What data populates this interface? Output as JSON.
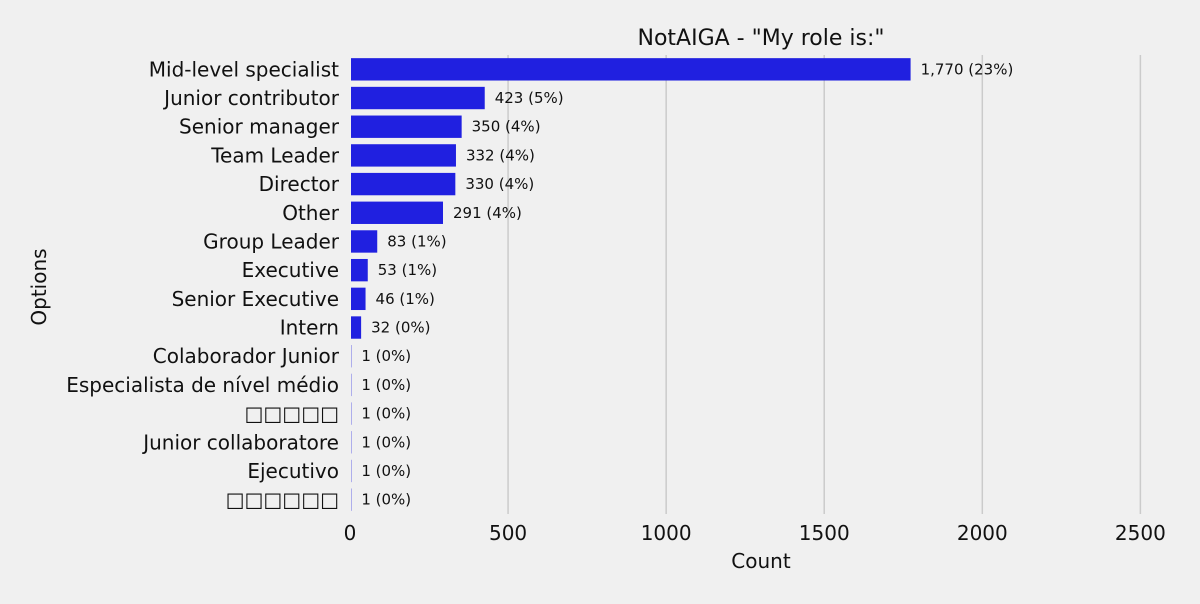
{
  "chart_data": {
    "type": "bar",
    "orientation": "horizontal",
    "title": "NotAIGA - \"My role is:\"",
    "xlabel": "Count",
    "ylabel": "Options",
    "xlim": [
      0,
      2600
    ],
    "xticks": [
      0,
      500,
      1000,
      1500,
      2000,
      2500
    ],
    "grid": "vertical",
    "bar_color": "#2020e0",
    "background": "#f0f0f0",
    "categories": [
      "Mid-level specialist",
      "Junior contributor",
      "Senior manager",
      "Team Leader",
      "Director",
      "Other",
      "Group Leader",
      "Executive",
      "Senior Executive",
      "Intern",
      "Colaborador Junior",
      "Especialista de nível médio",
      "□□□□□",
      "Junior collaboratore",
      "Ejecutivo",
      "□□□□□□"
    ],
    "values": [
      1770,
      423,
      350,
      332,
      330,
      291,
      83,
      53,
      46,
      32,
      1,
      1,
      1,
      1,
      1,
      1
    ],
    "data_labels": [
      "1,770 (23%)",
      "423 (5%)",
      "350 (4%)",
      "332 (4%)",
      "330 (4%)",
      "291 (4%)",
      "83 (1%)",
      "53 (1%)",
      "46 (1%)",
      "32 (0%)",
      "1 (0%)",
      "1 (0%)",
      "1 (0%)",
      "1 (0%)",
      "1 (0%)",
      "1 (0%)"
    ]
  }
}
